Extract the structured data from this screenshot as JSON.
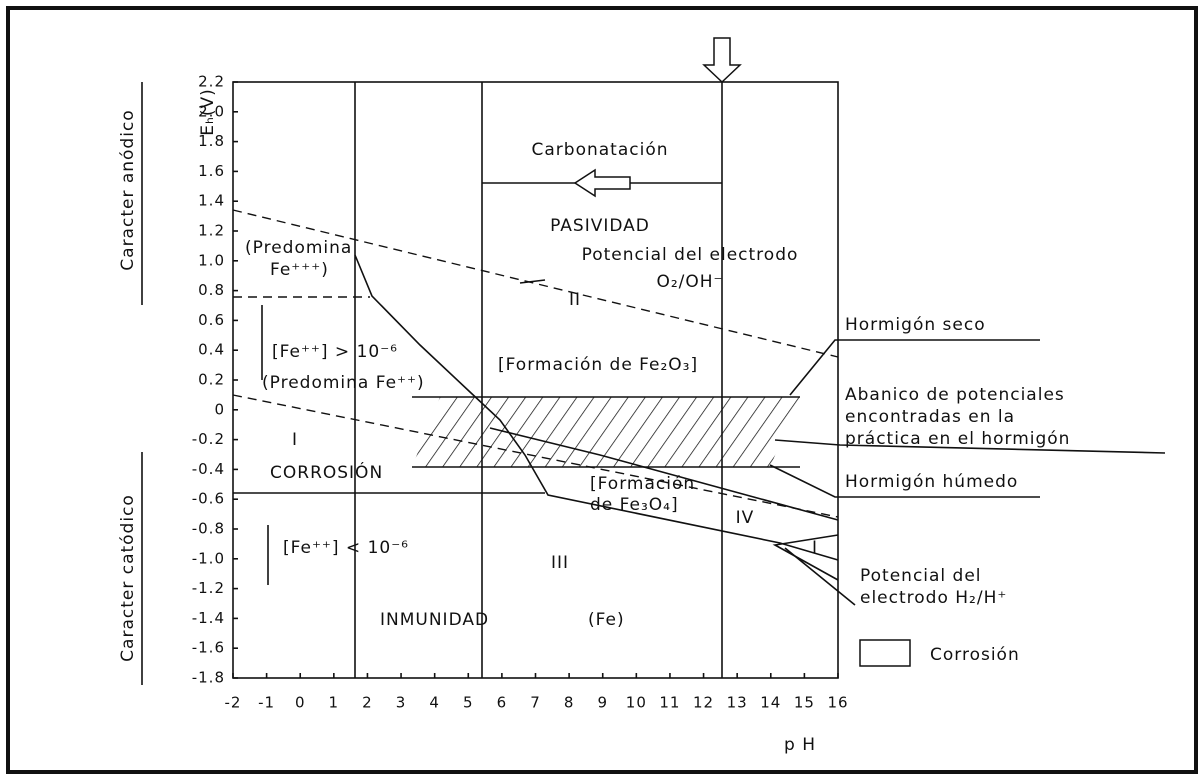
{
  "axes": {
    "y_label": "Eₕ(V)",
    "x_label": "p H",
    "xlim": [
      -2,
      16
    ],
    "ylim": [
      -1.8,
      2.2
    ],
    "xticks": [
      -2,
      -1,
      0,
      1,
      2,
      3,
      4,
      5,
      6,
      7,
      8,
      9,
      10,
      11,
      12,
      13,
      14,
      15,
      16
    ],
    "yticks": [
      2.2,
      {
        "value": 2,
        "label": "2.0"
      },
      1.8,
      1.6,
      1.4,
      1.2,
      {
        "value": 1,
        "label": "1.0"
      },
      0.8,
      0.6,
      0.4,
      0.2,
      0,
      -0.2,
      -0.4,
      -0.6,
      -0.8,
      {
        "value": -1,
        "label": "-1.0"
      },
      -1.2,
      -1.4,
      -1.6,
      -1.8
    ]
  },
  "side_labels": {
    "anodic": "Caracter anódico",
    "cathodic": "Caracter catódico"
  },
  "labels": {
    "carbonation": "Carbonatación",
    "passivity": "PASIVIDAD",
    "o2_line_1": "Potencial del electrodo",
    "o2_line_2": "O₂/OH⁻",
    "region_2": "II",
    "fe3_1": "(Predomina",
    "fe3_2": "Fe⁺⁺⁺)",
    "fe2_conc": "[Fe⁺⁺] > 10⁻⁶",
    "fe2_pred": "(Predomina Fe⁺⁺)",
    "fe2o3": "[Formación de Fe₂O₃]",
    "region_1": "I",
    "corrosion": "CORROSIÓN",
    "fe3o4_1": "[Formación",
    "fe3o4_2": "de Fe₃O₄]",
    "region_4": "IV",
    "region_1b": "I",
    "fe2_low": "[Fe⁺⁺] < 10⁻⁶",
    "region_3": "III",
    "immunity": "INMUNIDAD",
    "fe": "(Fe)"
  },
  "annotations": {
    "dry": "Hormigón seco",
    "range_1": "Abanico de potenciales",
    "range_2": "encontradas en la",
    "range_3": "práctica en el hormigón",
    "wet": "Hormigón húmedo",
    "h2_1": "Potencial del",
    "h2_2": "electrodo H₂/H⁺"
  },
  "legend": {
    "label": "Corrosión"
  }
}
